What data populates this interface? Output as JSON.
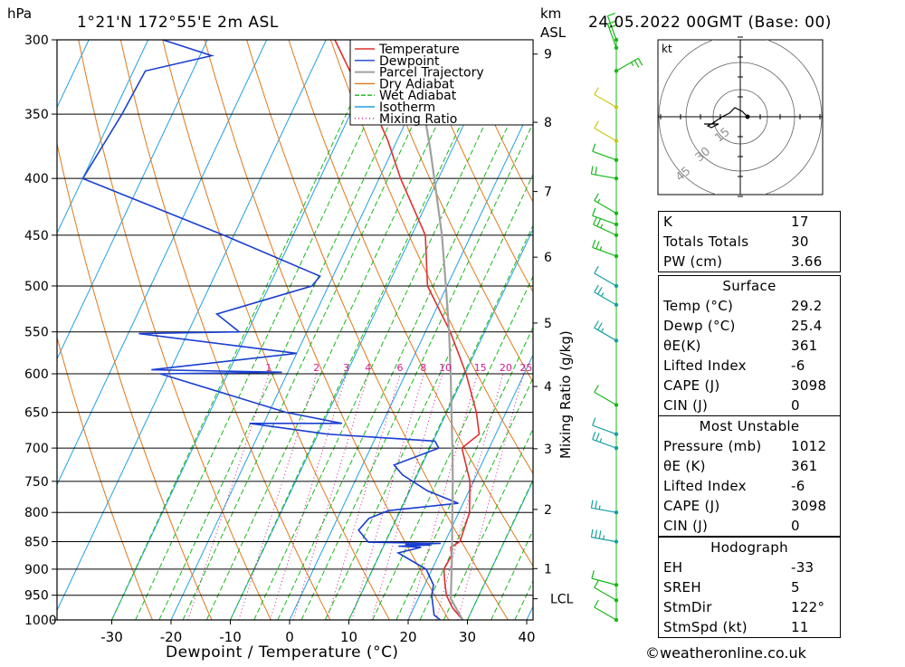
{
  "header": {
    "pressure_unit": "hPa",
    "location": "1°21'N  172°55'E  2m  ASL",
    "height_unit": "km",
    "height_ref": "ASL",
    "datetime": "24.05.2022  00GMT  (Base: 00)"
  },
  "legend": [
    {
      "label": "Temperature",
      "color": "#e03030"
    },
    {
      "label": "Dewpoint",
      "color": "#1a3fd0"
    },
    {
      "label": "Parcel Trajectory",
      "color": "#a0a0a0"
    },
    {
      "label": "Dry Adiabat",
      "color": "#e07818"
    },
    {
      "label": "Wet Adiabat",
      "color": "#18b818"
    },
    {
      "label": "Isotherm",
      "color": "#20a0e0"
    },
    {
      "label": "Mixing Ratio",
      "color": "#d01890"
    }
  ],
  "chart_data": {
    "type": "line",
    "subtype": "skew-T log-P",
    "xlabel": "Dewpoint / Temperature (°C)",
    "x_ticks": [
      -30,
      -20,
      -10,
      0,
      10,
      20,
      30,
      40
    ],
    "y_ticks_pressure": [
      300,
      350,
      400,
      450,
      500,
      550,
      600,
      650,
      700,
      750,
      800,
      850,
      900,
      950,
      1000
    ],
    "km_ticks": [
      {
        "label": "9",
        "p": 309
      },
      {
        "label": "8",
        "p": 356
      },
      {
        "label": "7",
        "p": 411
      },
      {
        "label": "6",
        "p": 471
      },
      {
        "label": "5",
        "p": 540
      },
      {
        "label": "4",
        "p": 616
      },
      {
        "label": "3",
        "p": 701
      },
      {
        "label": "2",
        "p": 795
      },
      {
        "label": "1",
        "p": 899
      },
      {
        "label": "LCL",
        "p": 957
      }
    ],
    "mixing_ratio_label": "Mixing Ratio (g/kg)",
    "mixing_ratios": [
      "1",
      "2",
      "3",
      "4",
      "6",
      "8",
      "10",
      "15",
      "20",
      "25"
    ],
    "series": [
      {
        "name": "Temperature",
        "color": "#e03030",
        "points": [
          [
            1000,
            29.2
          ],
          [
            975,
            26.5
          ],
          [
            950,
            24.5
          ],
          [
            925,
            23.2
          ],
          [
            900,
            22.0
          ],
          [
            875,
            22.2
          ],
          [
            860,
            21.4
          ],
          [
            850,
            22.5
          ],
          [
            800,
            21.8
          ],
          [
            750,
            19.4
          ],
          [
            700,
            15.4
          ],
          [
            680,
            17.2
          ],
          [
            650,
            15.0
          ],
          [
            600,
            10.2
          ],
          [
            550,
            4.2
          ],
          [
            500,
            -3.3
          ],
          [
            450,
            -7.7
          ],
          [
            400,
            -16.4
          ],
          [
            370,
            -21.5
          ],
          [
            350,
            -25.6
          ],
          [
            320,
            -33.5
          ],
          [
            300,
            -38.5
          ]
        ]
      },
      {
        "name": "Dewpoint",
        "color": "#1a3fd0",
        "points": [
          [
            1000,
            25.4
          ],
          [
            990,
            24.0
          ],
          [
            950,
            22.0
          ],
          [
            930,
            21.5
          ],
          [
            900,
            19.0
          ],
          [
            885,
            16.0
          ],
          [
            870,
            13.0
          ],
          [
            860,
            16.4
          ],
          [
            858,
            12.5
          ],
          [
            856,
            17.8
          ],
          [
            855,
            13.5
          ],
          [
            853,
            19.4
          ],
          [
            851,
            7.1
          ],
          [
            830,
            4.5
          ],
          [
            810,
            5.3
          ],
          [
            797,
            8.0
          ],
          [
            785,
            19.2
          ],
          [
            765,
            13.0
          ],
          [
            740,
            7.5
          ],
          [
            725,
            5.3
          ],
          [
            700,
            11.5
          ],
          [
            690,
            10.3
          ],
          [
            680,
            -8.4
          ],
          [
            665,
            -22.4
          ],
          [
            665,
            -6.8
          ],
          [
            650,
            -17.1
          ],
          [
            600,
            -41.4
          ],
          [
            598,
            -21.0
          ],
          [
            595,
            -43.2
          ],
          [
            575,
            -20.0
          ],
          [
            552,
            -48.2
          ],
          [
            550,
            -31.4
          ],
          [
            530,
            -36.6
          ],
          [
            500,
            -22.8
          ],
          [
            490,
            -22.2
          ],
          [
            450,
            -41.7
          ],
          [
            400,
            -70.0
          ],
          [
            350,
            -68.5
          ],
          [
            320,
            -68.0
          ],
          [
            310,
            -58.0
          ],
          [
            300,
            -67.5
          ]
        ]
      },
      {
        "name": "Parcel Trajectory",
        "color": "#a0a0a0",
        "points": [
          [
            1000,
            29.2
          ],
          [
            957,
            25.5
          ],
          [
            900,
            23.3
          ],
          [
            850,
            21.2
          ],
          [
            800,
            18.9
          ],
          [
            750,
            16.5
          ],
          [
            700,
            13.8
          ],
          [
            650,
            10.8
          ],
          [
            600,
            7.6
          ],
          [
            550,
            4.0
          ],
          [
            500,
            -0.2
          ],
          [
            450,
            -4.9
          ],
          [
            400,
            -10.7
          ],
          [
            375,
            -13.9
          ],
          [
            350,
            -17.5
          ]
        ]
      }
    ]
  },
  "wind_barbs": [
    {
      "p": 1000,
      "speed_kt": 12,
      "dir_deg": 300,
      "color": "#18b818"
    },
    {
      "p": 960,
      "speed_kt": 10,
      "dir_deg": 300,
      "color": "#18b818"
    },
    {
      "p": 930,
      "speed_kt": 10,
      "dir_deg": 285,
      "color": "#18b818"
    },
    {
      "p": 850,
      "speed_kt": 25,
      "dir_deg": 280,
      "color": "#18a0a0"
    },
    {
      "p": 800,
      "speed_kt": 15,
      "dir_deg": 280,
      "color": "#18a0a0"
    },
    {
      "p": 700,
      "speed_kt": 15,
      "dir_deg": 290,
      "color": "#18a0a0"
    },
    {
      "p": 680,
      "speed_kt": 12,
      "dir_deg": 290,
      "color": "#18a0a0"
    },
    {
      "p": 640,
      "speed_kt": 12,
      "dir_deg": 300,
      "color": "#18b818"
    },
    {
      "p": 560,
      "speed_kt": 15,
      "dir_deg": 300,
      "color": "#18a0a0"
    },
    {
      "p": 520,
      "speed_kt": 15,
      "dir_deg": 300,
      "color": "#18a0a0"
    },
    {
      "p": 500,
      "speed_kt": 10,
      "dir_deg": 300,
      "color": "#18a0a0"
    },
    {
      "p": 470,
      "speed_kt": 15,
      "dir_deg": 290,
      "color": "#18b818"
    },
    {
      "p": 450,
      "speed_kt": 15,
      "dir_deg": 295,
      "color": "#18b818"
    },
    {
      "p": 440,
      "speed_kt": 10,
      "dir_deg": 290,
      "color": "#18b818"
    },
    {
      "p": 430,
      "speed_kt": 8,
      "dir_deg": 300,
      "color": "#18b818"
    },
    {
      "p": 400,
      "speed_kt": 20,
      "dir_deg": 280,
      "color": "#18b818"
    },
    {
      "p": 385,
      "speed_kt": 10,
      "dir_deg": 290,
      "color": "#18b818"
    },
    {
      "p": 370,
      "speed_kt": 10,
      "dir_deg": 300,
      "color": "#c8c818"
    },
    {
      "p": 345,
      "speed_kt": 10,
      "dir_deg": 300,
      "color": "#c8c818"
    },
    {
      "p": 320,
      "speed_kt": 15,
      "dir_deg": 60,
      "color": "#18b818"
    },
    {
      "p": 305,
      "speed_kt": 20,
      "dir_deg": 340,
      "color": "#18b818"
    },
    {
      "p": 300,
      "speed_kt": 10,
      "dir_deg": 340,
      "color": "#18b818"
    }
  ],
  "hodograph": {
    "unit": "kt",
    "ring_labels": [
      "15",
      "30",
      "45"
    ],
    "points": [
      [
        4,
        0
      ],
      [
        1,
        3
      ],
      [
        -3,
        5
      ],
      [
        -6,
        2
      ],
      [
        -10,
        0
      ],
      [
        -13,
        -2
      ],
      [
        -16,
        -4
      ],
      [
        -14,
        -3
      ],
      [
        -18,
        -5
      ],
      [
        -16,
        -6
      ],
      [
        -12,
        -4
      ],
      [
        -20,
        -4
      ]
    ]
  },
  "indices": [
    {
      "key": "K",
      "value": "17"
    },
    {
      "key": "Totals Totals",
      "value": "30"
    },
    {
      "key": "PW (cm)",
      "value": "3.66"
    }
  ],
  "surface": {
    "title": "Surface",
    "rows": [
      {
        "key": "Temp (°C)",
        "value": "29.2"
      },
      {
        "key": "Dewp (°C)",
        "value": "25.4"
      },
      {
        "key": "θE(K)",
        "value": "361"
      },
      {
        "key": "Lifted Index",
        "value": "-6"
      },
      {
        "key": "CAPE (J)",
        "value": "3098"
      },
      {
        "key": "CIN (J)",
        "value": "0"
      }
    ]
  },
  "most_unstable": {
    "title": "Most Unstable",
    "rows": [
      {
        "key": "Pressure (mb)",
        "value": "1012"
      },
      {
        "key": "θE (K)",
        "value": "361"
      },
      {
        "key": "Lifted Index",
        "value": "-6"
      },
      {
        "key": "CAPE (J)",
        "value": "3098"
      },
      {
        "key": "CIN (J)",
        "value": "0"
      }
    ]
  },
  "hodograph_stats": {
    "title": "Hodograph",
    "rows": [
      {
        "key": "EH",
        "value": "-33"
      },
      {
        "key": "SREH",
        "value": "5"
      },
      {
        "key": "StmDir",
        "value": "122°"
      },
      {
        "key": "StmSpd (kt)",
        "value": "11"
      }
    ]
  },
  "footer": {
    "copyright": "©weatheronline.co.uk"
  }
}
